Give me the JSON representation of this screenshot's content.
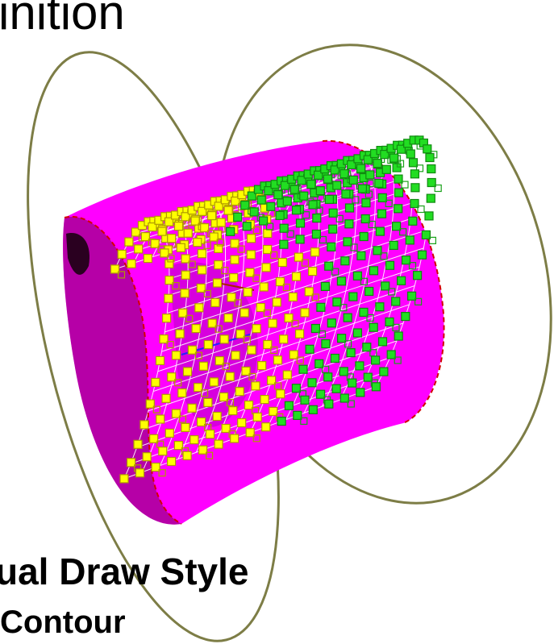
{
  "texts": {
    "top_title": "inition",
    "bottom_title": "ual Draw Style",
    "subtitle": "Contour"
  },
  "colors": {
    "ring": "#7d7d46",
    "body_fill": "#ff00ff",
    "body_dark": "#7a005f",
    "grid": "#ffffff",
    "front_markers": "#ffff00",
    "back_markers": "#22dd22",
    "marker_outline": "#b09a00",
    "edge_red": "#d40000"
  }
}
